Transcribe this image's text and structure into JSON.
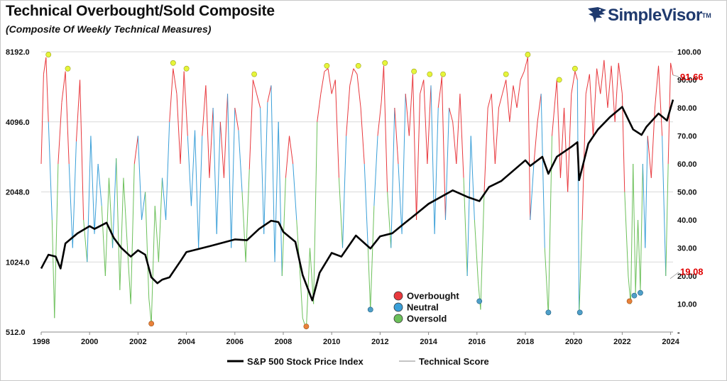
{
  "header": {
    "title": "Technical Overbought/Sold Composite",
    "subtitle": "(Composite Of Weekly Technical Measures)"
  },
  "logo": {
    "name": "SimpleVisor",
    "tm": "TM",
    "icon": "eagle-icon",
    "color": "#1f3a6e"
  },
  "chart_data": {
    "type": "line",
    "x_range": [
      1998,
      2024.1
    ],
    "x_ticks": [
      "1998",
      "2000",
      "2002",
      "2004",
      "2006",
      "2008",
      "2010",
      "2012",
      "2014",
      "2016",
      "2018",
      "2020",
      "2022",
      "2024"
    ],
    "left_axis": {
      "scale": "log2",
      "range": [
        512,
        8192
      ],
      "ticks": [
        "512.0",
        "1024.0",
        "2048.0",
        "4096.0",
        "8192.0"
      ]
    },
    "right_axis": {
      "range": [
        0,
        100
      ],
      "ticks": [
        "-",
        "10.00",
        "20.00",
        "30.00",
        "40.00",
        "50.00",
        "60.00",
        "70.00",
        "80.00",
        "90.00",
        "100.00"
      ]
    },
    "grid": "horizontal",
    "score_colors": {
      "overbought": "#e8383d",
      "neutral": "#3a9fd8",
      "oversold": "#6cc05a"
    },
    "series": [
      {
        "name": "S&P 500 Stock Price Index",
        "axis": "left",
        "color": "#000000",
        "points": [
          [
            1998,
            960
          ],
          [
            1998.3,
            1100
          ],
          [
            1998.6,
            1080
          ],
          [
            1998.8,
            960
          ],
          [
            1999,
            1230
          ],
          [
            1999.5,
            1360
          ],
          [
            2000,
            1460
          ],
          [
            2000.2,
            1420
          ],
          [
            2000.7,
            1510
          ],
          [
            2001,
            1300
          ],
          [
            2001.3,
            1180
          ],
          [
            2001.7,
            1080
          ],
          [
            2002,
            1150
          ],
          [
            2002.3,
            1100
          ],
          [
            2002.55,
            880
          ],
          [
            2002.8,
            830
          ],
          [
            2003,
            860
          ],
          [
            2003.3,
            880
          ],
          [
            2003.8,
            1050
          ],
          [
            2004,
            1130
          ],
          [
            2005,
            1200
          ],
          [
            2006,
            1280
          ],
          [
            2006.5,
            1270
          ],
          [
            2007,
            1420
          ],
          [
            2007.5,
            1540
          ],
          [
            2007.8,
            1520
          ],
          [
            2008,
            1380
          ],
          [
            2008.5,
            1250
          ],
          [
            2008.8,
            900
          ],
          [
            2009.2,
            700
          ],
          [
            2009.5,
            920
          ],
          [
            2010,
            1120
          ],
          [
            2010.4,
            1080
          ],
          [
            2011,
            1330
          ],
          [
            2011.6,
            1170
          ],
          [
            2012,
            1320
          ],
          [
            2012.5,
            1360
          ],
          [
            2013,
            1500
          ],
          [
            2013.5,
            1650
          ],
          [
            2014,
            1820
          ],
          [
            2015,
            2080
          ],
          [
            2015.6,
            1950
          ],
          [
            2016.1,
            1870
          ],
          [
            2016.5,
            2150
          ],
          [
            2017,
            2280
          ],
          [
            2018,
            2800
          ],
          [
            2018.2,
            2650
          ],
          [
            2018.7,
            2900
          ],
          [
            2018.95,
            2450
          ],
          [
            2019.3,
            2900
          ],
          [
            2019.9,
            3200
          ],
          [
            2020.15,
            3350
          ],
          [
            2020.22,
            2300
          ],
          [
            2020.6,
            3300
          ],
          [
            2021,
            3800
          ],
          [
            2021.5,
            4300
          ],
          [
            2022,
            4750
          ],
          [
            2022.45,
            3800
          ],
          [
            2022.8,
            3600
          ],
          [
            2023,
            3900
          ],
          [
            2023.5,
            4450
          ],
          [
            2023.85,
            4150
          ],
          [
            2024,
            4700
          ],
          [
            2024.1,
            5100
          ]
        ]
      },
      {
        "name": "Technical Score",
        "axis": "right",
        "color": "#888888",
        "points": [
          [
            1998,
            60
          ],
          [
            1998.1,
            92
          ],
          [
            1998.2,
            98
          ],
          [
            1998.3,
            75
          ],
          [
            1998.45,
            40
          ],
          [
            1998.55,
            5
          ],
          [
            1998.7,
            60
          ],
          [
            1998.85,
            82
          ],
          [
            1999,
            93
          ],
          [
            1999.15,
            60
          ],
          [
            1999.3,
            30
          ],
          [
            1999.45,
            68
          ],
          [
            1999.6,
            90
          ],
          [
            1999.75,
            40
          ],
          [
            1999.9,
            25
          ],
          [
            2000.05,
            70
          ],
          [
            2000.2,
            35
          ],
          [
            2000.35,
            60
          ],
          [
            2000.5,
            45
          ],
          [
            2000.65,
            20
          ],
          [
            2000.8,
            55
          ],
          [
            2000.95,
            30
          ],
          [
            2001.1,
            62
          ],
          [
            2001.25,
            15
          ],
          [
            2001.4,
            55
          ],
          [
            2001.55,
            32
          ],
          [
            2001.7,
            10
          ],
          [
            2001.85,
            60
          ],
          [
            2002,
            70
          ],
          [
            2002.15,
            40
          ],
          [
            2002.3,
            50
          ],
          [
            2002.45,
            12
          ],
          [
            2002.55,
            3
          ],
          [
            2002.7,
            45
          ],
          [
            2002.85,
            25
          ],
          [
            2003,
            55
          ],
          [
            2003.15,
            40
          ],
          [
            2003.3,
            75
          ],
          [
            2003.45,
            94
          ],
          [
            2003.6,
            85
          ],
          [
            2003.75,
            60
          ],
          [
            2003.9,
            93
          ],
          [
            2004.05,
            70
          ],
          [
            2004.2,
            45
          ],
          [
            2004.35,
            72
          ],
          [
            2004.5,
            30
          ],
          [
            2004.65,
            70
          ],
          [
            2004.8,
            88
          ],
          [
            2004.95,
            55
          ],
          [
            2005.1,
            80
          ],
          [
            2005.25,
            35
          ],
          [
            2005.4,
            75
          ],
          [
            2005.55,
            55
          ],
          [
            2005.7,
            85
          ],
          [
            2005.85,
            30
          ],
          [
            2006,
            80
          ],
          [
            2006.15,
            72
          ],
          [
            2006.3,
            50
          ],
          [
            2006.45,
            25
          ],
          [
            2006.6,
            58
          ],
          [
            2006.75,
            90
          ],
          [
            2006.9,
            85
          ],
          [
            2007.05,
            80
          ],
          [
            2007.2,
            35
          ],
          [
            2007.35,
            82
          ],
          [
            2007.5,
            88
          ],
          [
            2007.65,
            25
          ],
          [
            2007.8,
            75
          ],
          [
            2007.95,
            20
          ],
          [
            2008.1,
            55
          ],
          [
            2008.25,
            70
          ],
          [
            2008.4,
            60
          ],
          [
            2008.55,
            40
          ],
          [
            2008.7,
            20
          ],
          [
            2008.8,
            5
          ],
          [
            2008.95,
            1
          ],
          [
            2009.1,
            30
          ],
          [
            2009.25,
            10
          ],
          [
            2009.4,
            75
          ],
          [
            2009.55,
            85
          ],
          [
            2009.7,
            93
          ],
          [
            2009.85,
            94
          ],
          [
            2010,
            85
          ],
          [
            2010.15,
            90
          ],
          [
            2010.3,
            55
          ],
          [
            2010.45,
            30
          ],
          [
            2010.6,
            70
          ],
          [
            2010.75,
            88
          ],
          [
            2010.9,
            94
          ],
          [
            2011.05,
            92
          ],
          [
            2011.2,
            80
          ],
          [
            2011.35,
            60
          ],
          [
            2011.5,
            30
          ],
          [
            2011.6,
            8
          ],
          [
            2011.75,
            45
          ],
          [
            2011.9,
            70
          ],
          [
            2012.05,
            82
          ],
          [
            2012.15,
            95
          ],
          [
            2012.3,
            50
          ],
          [
            2012.45,
            30
          ],
          [
            2012.6,
            80
          ],
          [
            2012.75,
            60
          ],
          [
            2012.9,
            35
          ],
          [
            2013.05,
            85
          ],
          [
            2013.2,
            70
          ],
          [
            2013.35,
            92
          ],
          [
            2013.5,
            40
          ],
          [
            2013.65,
            85
          ],
          [
            2013.8,
            90
          ],
          [
            2013.95,
            60
          ],
          [
            2014.1,
            88
          ],
          [
            2014.25,
            35
          ],
          [
            2014.4,
            80
          ],
          [
            2014.55,
            91
          ],
          [
            2014.7,
            40
          ],
          [
            2014.85,
            80
          ],
          [
            2015,
            75
          ],
          [
            2015.15,
            60
          ],
          [
            2015.3,
            85
          ],
          [
            2015.45,
            55
          ],
          [
            2015.6,
            20
          ],
          [
            2015.75,
            70
          ],
          [
            2015.9,
            40
          ],
          [
            2016.05,
            18
          ],
          [
            2016.15,
            8
          ],
          [
            2016.3,
            50
          ],
          [
            2016.45,
            80
          ],
          [
            2016.6,
            85
          ],
          [
            2016.75,
            60
          ],
          [
            2016.9,
            80
          ],
          [
            2017.05,
            85
          ],
          [
            2017.2,
            90
          ],
          [
            2017.35,
            75
          ],
          [
            2017.5,
            88
          ],
          [
            2017.65,
            80
          ],
          [
            2017.8,
            90
          ],
          [
            2017.95,
            93
          ],
          [
            2018.1,
            98
          ],
          [
            2018.2,
            40
          ],
          [
            2018.35,
            60
          ],
          [
            2018.5,
            75
          ],
          [
            2018.65,
            85
          ],
          [
            2018.8,
            30
          ],
          [
            2018.95,
            6
          ],
          [
            2019.1,
            70
          ],
          [
            2019.3,
            90
          ],
          [
            2019.45,
            55
          ],
          [
            2019.6,
            80
          ],
          [
            2019.75,
            50
          ],
          [
            2019.9,
            85
          ],
          [
            2020.05,
            93
          ],
          [
            2020.15,
            90
          ],
          [
            2020.22,
            6
          ],
          [
            2020.35,
            40
          ],
          [
            2020.5,
            85
          ],
          [
            2020.65,
            92
          ],
          [
            2020.8,
            70
          ],
          [
            2020.95,
            94
          ],
          [
            2021.1,
            85
          ],
          [
            2021.25,
            97
          ],
          [
            2021.4,
            80
          ],
          [
            2021.55,
            95
          ],
          [
            2021.7,
            75
          ],
          [
            2021.85,
            96
          ],
          [
            2022,
            85
          ],
          [
            2022.1,
            50
          ],
          [
            2022.25,
            20
          ],
          [
            2022.35,
            10
          ],
          [
            2022.45,
            60
          ],
          [
            2022.55,
            14
          ],
          [
            2022.65,
            40
          ],
          [
            2022.75,
            15
          ],
          [
            2022.85,
            60
          ],
          [
            2022.95,
            30
          ],
          [
            2023.05,
            70
          ],
          [
            2023.2,
            55
          ],
          [
            2023.35,
            80
          ],
          [
            2023.5,
            95
          ],
          [
            2023.65,
            70
          ],
          [
            2023.8,
            20
          ],
          [
            2023.9,
            60
          ],
          [
            2024,
            96
          ],
          [
            2024.1,
            91.66
          ]
        ]
      }
    ],
    "current_values": {
      "score": "91.66",
      "previous": "19.08"
    },
    "overbought_markers": [
      [
        1998.3,
        99
      ],
      [
        1999.1,
        94
      ],
      [
        2003.45,
        96
      ],
      [
        2004,
        94
      ],
      [
        2006.8,
        92
      ],
      [
        2009.8,
        95
      ],
      [
        2011.1,
        95
      ],
      [
        2012.2,
        96
      ],
      [
        2013.4,
        93
      ],
      [
        2014.05,
        92
      ],
      [
        2014.6,
        92
      ],
      [
        2017.2,
        92
      ],
      [
        2018.1,
        99
      ],
      [
        2019.4,
        90
      ],
      [
        2020.05,
        94
      ]
    ],
    "oversold_markers": {
      "orange": [
        [
          2002.55,
          3
        ],
        [
          2008.95,
          2
        ],
        [
          2022.3,
          11
        ]
      ],
      "blue": [
        [
          2011.6,
          8
        ],
        [
          2016.1,
          11
        ],
        [
          2018.95,
          7
        ],
        [
          2020.25,
          7
        ],
        [
          2022.5,
          13
        ],
        [
          2022.75,
          14
        ]
      ]
    },
    "inset_legend": [
      {
        "label": "Overbought",
        "color": "#e8383d"
      },
      {
        "label": "Neutral",
        "color": "#3a9fd8"
      },
      {
        "label": "Oversold",
        "color": "#6cc05a"
      }
    ],
    "legend": [
      {
        "label": "S&P 500 Stock Price Index",
        "color": "#000000"
      },
      {
        "label": "Technical Score",
        "color": "#888888"
      }
    ],
    "legend_position": "bottom-center"
  }
}
